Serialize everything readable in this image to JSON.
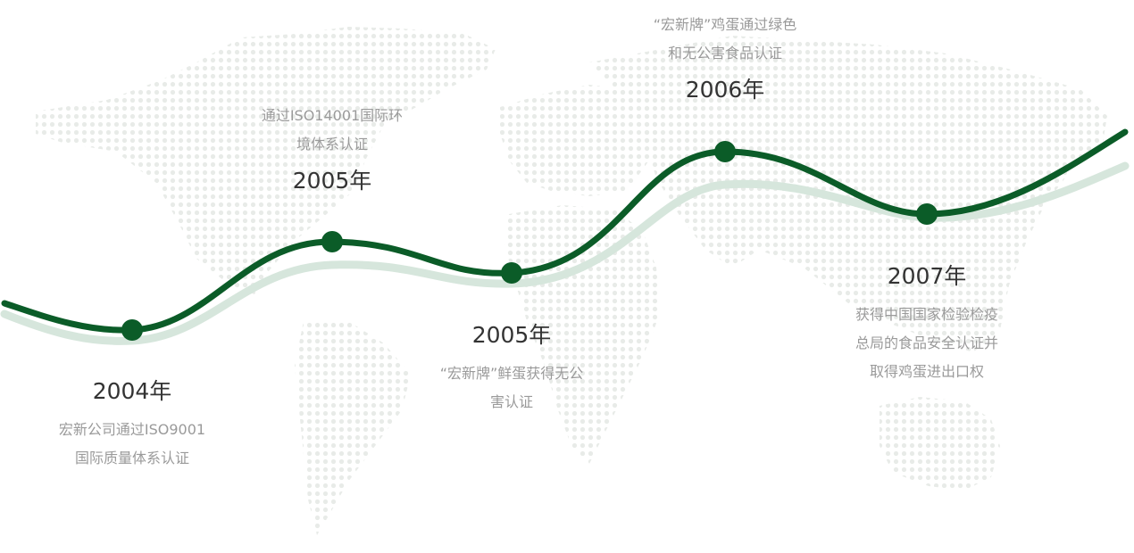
{
  "timeline": {
    "milestones": [
      {
        "year": "2004年",
        "desc": [
          "宏新公司通过ISO9001",
          "国际质量体系认证"
        ]
      },
      {
        "year": "2005年",
        "desc": [
          "通过ISO14001国际环",
          "境体系认证"
        ]
      },
      {
        "year": "2005年",
        "desc": [
          "“宏新牌”鲜蛋获得无公",
          "害认证"
        ]
      },
      {
        "year": "2006年",
        "desc": [
          "“宏新牌”鸡蛋通过绿色",
          "和无公害食品认证"
        ]
      },
      {
        "year": "2007年",
        "desc": [
          "获得中国国家检验检疫",
          "总局的食品安全认证并",
          "取得鸡蛋进出口权"
        ]
      }
    ]
  },
  "colors": {
    "line": "#0b5c28",
    "shadow_line": "#d6e6dc",
    "map_dot": "#e8ebe8",
    "year_text": "#333333",
    "desc_text": "#9a9a9a"
  }
}
